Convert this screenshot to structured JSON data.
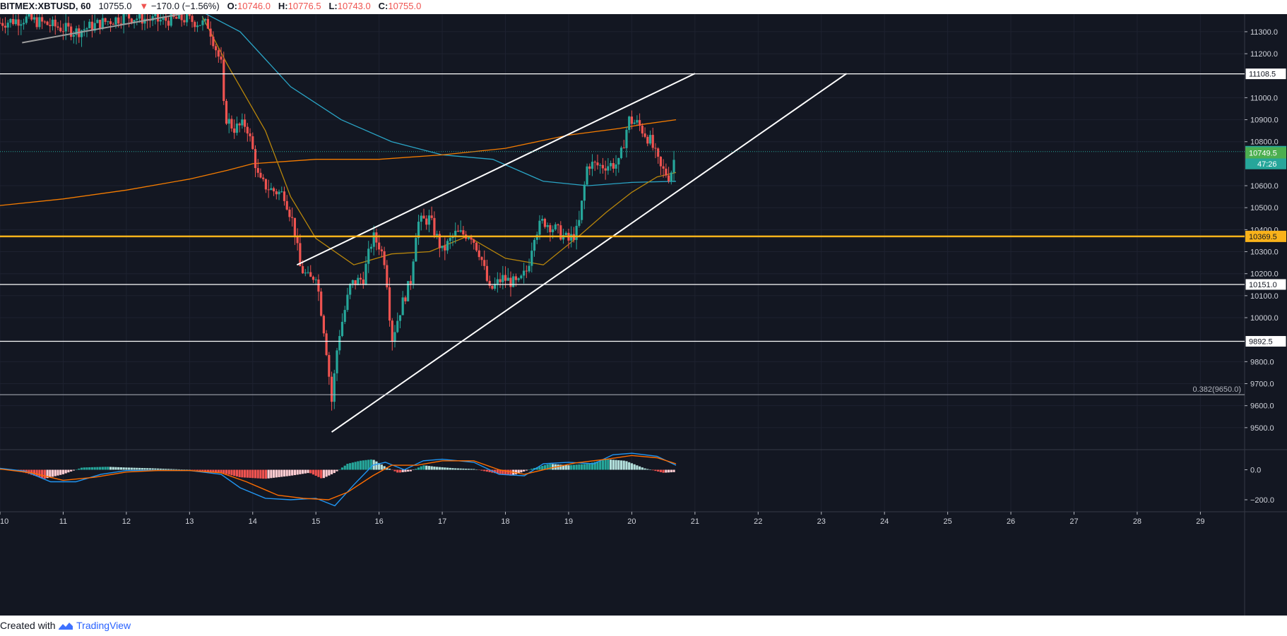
{
  "header": {
    "symbol": "BITMEX:XBTUSD, 60",
    "last": "10755.0",
    "change_arrow": "▼",
    "change": "−170.0 (−1.56%)",
    "o_label": "O:",
    "o_value": "10746.0",
    "h_label": "H:",
    "h_value": "10776.5",
    "l_label": "L:",
    "l_value": "10743.0",
    "c_label": "C:",
    "c_value": "10755.0"
  },
  "footer": {
    "created_with": "Created with",
    "brand": "TradingView"
  },
  "chart_data": {
    "type": "candlestick",
    "title": "BITMEX:XBTUSD, 60",
    "price_axis": {
      "min": 9400,
      "max": 11380,
      "ticks": [
        11300,
        11200,
        11000,
        10900,
        10800,
        10600,
        10500,
        10400,
        10300,
        10200,
        10100,
        10000,
        9800,
        9700,
        9600,
        9500
      ],
      "tick_labels": [
        "11300.0",
        "11200.0",
        "11000.0",
        "10900.0",
        "10800.0",
        "10600.0",
        "10500.0",
        "10400.0",
        "10300.0",
        "10200.0",
        "10100.0",
        "10000.0",
        "9800.0",
        "9700.0",
        "9600.0",
        "9500.0"
      ]
    },
    "time_axis": {
      "min": 10,
      "max": 29.7,
      "ticks": [
        10,
        11,
        12,
        13,
        14,
        15,
        16,
        17,
        18,
        19,
        20,
        21,
        22,
        23,
        24,
        25,
        26,
        27,
        28,
        29
      ],
      "tick_labels": [
        "10",
        "11",
        "12",
        "13",
        "14",
        "15",
        "16",
        "17",
        "18",
        "19",
        "20",
        "21",
        "22",
        "23",
        "24",
        "25",
        "26",
        "27",
        "28",
        "29"
      ]
    },
    "price_path": [
      [
        10.0,
        11340
      ],
      [
        10.4,
        11360
      ],
      [
        10.8,
        11330
      ],
      [
        11.2,
        11300
      ],
      [
        11.6,
        11340
      ],
      [
        12.0,
        11370
      ],
      [
        12.5,
        11350
      ],
      [
        12.9,
        11360
      ],
      [
        13.3,
        11330
      ],
      [
        13.5,
        11150
      ],
      [
        13.55,
        10920
      ],
      [
        13.7,
        10860
      ],
      [
        13.9,
        10880
      ],
      [
        14.0,
        10760
      ],
      [
        14.1,
        10620
      ],
      [
        14.3,
        10580
      ],
      [
        14.5,
        10560
      ],
      [
        14.65,
        10420
      ],
      [
        14.75,
        10230
      ],
      [
        14.9,
        10170
      ],
      [
        15.0,
        10200
      ],
      [
        15.15,
        9900
      ],
      [
        15.25,
        9620
      ],
      [
        15.35,
        9900
      ],
      [
        15.55,
        10150
      ],
      [
        15.75,
        10180
      ],
      [
        15.9,
        10370
      ],
      [
        16.0,
        10330
      ],
      [
        16.1,
        10250
      ],
      [
        16.2,
        9900
      ],
      [
        16.35,
        10050
      ],
      [
        16.5,
        10170
      ],
      [
        16.6,
        10430
      ],
      [
        16.8,
        10450
      ],
      [
        17.0,
        10300
      ],
      [
        17.2,
        10380
      ],
      [
        17.45,
        10380
      ],
      [
        17.6,
        10290
      ],
      [
        17.75,
        10120
      ],
      [
        17.95,
        10180
      ],
      [
        18.2,
        10150
      ],
      [
        18.35,
        10220
      ],
      [
        18.45,
        10380
      ],
      [
        18.6,
        10440
      ],
      [
        18.8,
        10400
      ],
      [
        19.0,
        10350
      ],
      [
        19.15,
        10400
      ],
      [
        19.3,
        10700
      ],
      [
        19.5,
        10690
      ],
      [
        19.8,
        10700
      ],
      [
        19.95,
        10900
      ],
      [
        20.1,
        10880
      ],
      [
        20.3,
        10800
      ],
      [
        20.45,
        10680
      ],
      [
        20.6,
        10640
      ],
      [
        20.7,
        10755
      ]
    ],
    "ma_series": [
      {
        "color": "#2aa4c5",
        "points": [
          [
            10.0,
            11480
          ],
          [
            13.0,
            11420
          ],
          [
            13.8,
            11300
          ],
          [
            14.6,
            11050
          ],
          [
            15.4,
            10900
          ],
          [
            16.2,
            10800
          ],
          [
            17.0,
            10740
          ],
          [
            17.8,
            10720
          ],
          [
            18.6,
            10620
          ],
          [
            19.3,
            10600
          ],
          [
            20.0,
            10615
          ],
          [
            20.7,
            10620
          ]
        ]
      },
      {
        "color": "#f57c00",
        "points": [
          [
            10.0,
            10510
          ],
          [
            11.0,
            10540
          ],
          [
            12.0,
            10580
          ],
          [
            13.0,
            10630
          ],
          [
            13.6,
            10670
          ],
          [
            14.0,
            10700
          ],
          [
            15.0,
            10720
          ],
          [
            16.0,
            10720
          ],
          [
            17.0,
            10740
          ],
          [
            18.0,
            10770
          ],
          [
            19.0,
            10830
          ],
          [
            19.8,
            10860
          ],
          [
            20.2,
            10880
          ],
          [
            20.7,
            10900
          ]
        ]
      },
      {
        "color": "#b8860b",
        "points": [
          [
            13.2,
            11370
          ],
          [
            13.6,
            11150
          ],
          [
            14.2,
            10850
          ],
          [
            14.6,
            10550
          ],
          [
            15.0,
            10360
          ],
          [
            15.6,
            10240
          ],
          [
            16.2,
            10290
          ],
          [
            16.8,
            10300
          ],
          [
            17.4,
            10370
          ],
          [
            18.0,
            10270
          ],
          [
            18.6,
            10240
          ],
          [
            19.2,
            10380
          ],
          [
            19.6,
            10480
          ],
          [
            20.0,
            10570
          ],
          [
            20.4,
            10640
          ],
          [
            20.7,
            10660
          ]
        ]
      }
    ],
    "horizontal_levels": [
      {
        "value": 11108.5,
        "label": "11108.5",
        "color": "#ffffff"
      },
      {
        "value": 10369.5,
        "label": "10369.5",
        "color": "#f9b21a"
      },
      {
        "value": 10151.0,
        "label": "10151.0",
        "color": "#ffffff"
      },
      {
        "value": 9892.5,
        "label": "9892.5",
        "color": "#ffffff"
      }
    ],
    "fib_level": {
      "value": 9650,
      "label": "0.382(9650.0)"
    },
    "last_price": {
      "value": 10755.0,
      "label": "10755.0",
      "countdown": "47:26",
      "color": "#26a69a"
    },
    "bid_price": {
      "value": 10749.5,
      "label": "10749.5",
      "color": "#4caf50"
    },
    "trendlines": [
      {
        "from": [
          10.35,
          11250
        ],
        "to": [
          13.05,
          11390
        ],
        "color": "#9e9e9e"
      },
      {
        "from": [
          14.7,
          10240
        ],
        "to": [
          21.0,
          11110
        ],
        "color": "#ffffff"
      },
      {
        "from": [
          15.25,
          9480
        ],
        "to": [
          23.4,
          11110
        ],
        "color": "#ffffff"
      }
    ],
    "macd": {
      "axis_ticks": [
        0,
        -200
      ],
      "tick_labels": [
        "0.0",
        "−200.0"
      ],
      "min": -280,
      "max": 120,
      "histogram": [
        [
          10.0,
          10
        ],
        [
          10.4,
          -20
        ],
        [
          10.7,
          -60
        ],
        [
          11.0,
          -30
        ],
        [
          11.3,
          15
        ],
        [
          11.7,
          20
        ],
        [
          12.0,
          15
        ],
        [
          12.4,
          10
        ],
        [
          13.0,
          0
        ],
        [
          13.5,
          -20
        ],
        [
          13.8,
          -50
        ],
        [
          14.2,
          -60
        ],
        [
          14.6,
          -40
        ],
        [
          14.9,
          -20
        ],
        [
          15.1,
          -60
        ],
        [
          15.3,
          -20
        ],
        [
          15.5,
          40
        ],
        [
          15.7,
          60
        ],
        [
          15.9,
          70
        ],
        [
          16.1,
          20
        ],
        [
          16.3,
          -20
        ],
        [
          16.5,
          -10
        ],
        [
          16.7,
          30
        ],
        [
          16.9,
          20
        ],
        [
          17.2,
          10
        ],
        [
          17.5,
          5
        ],
        [
          17.8,
          -20
        ],
        [
          18.1,
          -40
        ],
        [
          18.4,
          5
        ],
        [
          18.7,
          40
        ],
        [
          19.0,
          30
        ],
        [
          19.3,
          40
        ],
        [
          19.6,
          70
        ],
        [
          19.9,
          60
        ],
        [
          20.2,
          10
        ],
        [
          20.5,
          -20
        ],
        [
          20.7,
          -15
        ]
      ],
      "macd_line": [
        [
          10.0,
          10
        ],
        [
          10.4,
          -10
        ],
        [
          10.8,
          -80
        ],
        [
          11.2,
          -80
        ],
        [
          11.6,
          -30
        ],
        [
          12.0,
          -5
        ],
        [
          12.5,
          -5
        ],
        [
          13.0,
          -5
        ],
        [
          13.5,
          -30
        ],
        [
          13.8,
          -120
        ],
        [
          14.2,
          -190
        ],
        [
          14.6,
          -200
        ],
        [
          15.0,
          -190
        ],
        [
          15.3,
          -240
        ],
        [
          15.6,
          -100
        ],
        [
          15.9,
          30
        ],
        [
          16.1,
          50
        ],
        [
          16.4,
          0
        ],
        [
          16.7,
          60
        ],
        [
          17.0,
          70
        ],
        [
          17.5,
          50
        ],
        [
          17.9,
          -30
        ],
        [
          18.3,
          -40
        ],
        [
          18.6,
          40
        ],
        [
          19.0,
          50
        ],
        [
          19.4,
          40
        ],
        [
          19.7,
          100
        ],
        [
          20.0,
          110
        ],
        [
          20.4,
          90
        ],
        [
          20.7,
          30
        ]
      ],
      "signal_line": [
        [
          10.0,
          5
        ],
        [
          10.5,
          -20
        ],
        [
          11.0,
          -70
        ],
        [
          11.5,
          -50
        ],
        [
          12.0,
          -15
        ],
        [
          12.5,
          -5
        ],
        [
          13.0,
          -5
        ],
        [
          13.5,
          -20
        ],
        [
          13.9,
          -80
        ],
        [
          14.4,
          -170
        ],
        [
          14.8,
          -190
        ],
        [
          15.2,
          -200
        ],
        [
          15.5,
          -150
        ],
        [
          15.9,
          -40
        ],
        [
          16.2,
          30
        ],
        [
          16.6,
          30
        ],
        [
          17.0,
          60
        ],
        [
          17.5,
          60
        ],
        [
          17.9,
          0
        ],
        [
          18.3,
          -30
        ],
        [
          18.7,
          10
        ],
        [
          19.1,
          45
        ],
        [
          19.6,
          70
        ],
        [
          20.0,
          95
        ],
        [
          20.4,
          80
        ],
        [
          20.7,
          40
        ]
      ]
    }
  }
}
